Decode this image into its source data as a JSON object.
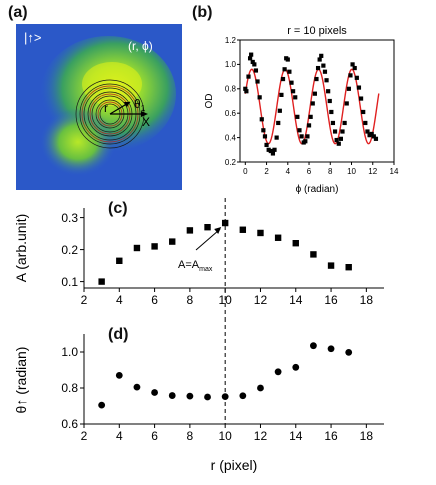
{
  "panels": {
    "a": {
      "letter": "(a)",
      "state_label": "|↑>",
      "coord_label": "(r, ϕ)",
      "r_label": "r",
      "theta_label": "θ",
      "theta_sub": "1",
      "x_label": "X"
    },
    "b": {
      "letter": "(b)"
    },
    "c": {
      "letter": "(c)",
      "annotation": "A=A",
      "annotation_sub": "max"
    },
    "d": {
      "letter": "(d)"
    }
  },
  "chart_data": [
    {
      "id": "b",
      "type": "scatter",
      "title": "r = 10 pixels",
      "xlabel": "ϕ (radian)",
      "ylabel": "OD",
      "xlim": [
        -0.5,
        14
      ],
      "ylim": [
        0.2,
        1.2
      ],
      "xticks": [
        0,
        2,
        4,
        6,
        8,
        10,
        12,
        14
      ],
      "yticks": [
        0.2,
        0.4,
        0.6,
        0.8,
        1.0,
        1.2
      ],
      "ytick_labels": [
        "0.2",
        "0.4",
        "0.6",
        "0.8",
        "1.0",
        "1.2"
      ],
      "points": [
        [
          0.0,
          0.8
        ],
        [
          0.1,
          0.78
        ],
        [
          0.3,
          0.9
        ],
        [
          0.45,
          1.05
        ],
        [
          0.55,
          1.08
        ],
        [
          0.7,
          1.02
        ],
        [
          0.85,
          1.0
        ],
        [
          1.0,
          0.95
        ],
        [
          1.15,
          0.86
        ],
        [
          1.35,
          0.73
        ],
        [
          1.55,
          0.55
        ],
        [
          1.7,
          0.46
        ],
        [
          1.85,
          0.41
        ],
        [
          2.0,
          0.34
        ],
        [
          2.2,
          0.3
        ],
        [
          2.4,
          0.29
        ],
        [
          2.6,
          0.27
        ],
        [
          2.75,
          0.3
        ],
        [
          2.95,
          0.4
        ],
        [
          3.1,
          0.52
        ],
        [
          3.25,
          0.62
        ],
        [
          3.4,
          0.75
        ],
        [
          3.55,
          0.88
        ],
        [
          3.7,
          0.96
        ],
        [
          3.85,
          1.05
        ],
        [
          4.0,
          1.04
        ],
        [
          4.15,
          0.94
        ],
        [
          4.35,
          0.85
        ],
        [
          4.5,
          0.78
        ],
        [
          4.7,
          0.73
        ],
        [
          4.9,
          0.57
        ],
        [
          5.1,
          0.46
        ],
        [
          5.3,
          0.41
        ],
        [
          5.5,
          0.36
        ],
        [
          5.65,
          0.37
        ],
        [
          5.85,
          0.41
        ],
        [
          6.0,
          0.5
        ],
        [
          6.15,
          0.57
        ],
        [
          6.35,
          0.68
        ],
        [
          6.55,
          0.76
        ],
        [
          6.7,
          0.88
        ],
        [
          6.85,
          0.97
        ],
        [
          7.0,
          1.04
        ],
        [
          7.15,
          1.07
        ],
        [
          7.35,
          0.99
        ],
        [
          7.5,
          0.94
        ],
        [
          7.65,
          0.87
        ],
        [
          7.8,
          0.78
        ],
        [
          7.95,
          0.7
        ],
        [
          8.1,
          0.61
        ],
        [
          8.25,
          0.52
        ],
        [
          8.45,
          0.45
        ],
        [
          8.6,
          0.38
        ],
        [
          8.8,
          0.35
        ],
        [
          9.0,
          0.39
        ],
        [
          9.15,
          0.45
        ],
        [
          9.35,
          0.52
        ],
        [
          9.55,
          0.68
        ],
        [
          9.75,
          0.8
        ],
        [
          9.9,
          0.91
        ],
        [
          10.1,
          1.0
        ],
        [
          10.3,
          0.97
        ],
        [
          10.5,
          0.89
        ],
        [
          10.7,
          0.81
        ],
        [
          10.9,
          0.72
        ],
        [
          11.1,
          0.61
        ],
        [
          11.3,
          0.52
        ],
        [
          11.5,
          0.45
        ],
        [
          11.7,
          0.42
        ],
        [
          11.9,
          0.43
        ],
        [
          12.1,
          0.41
        ],
        [
          12.3,
          0.39
        ]
      ],
      "fit": {
        "type": "line",
        "offset": 0.655,
        "amplitude": 0.305,
        "angular_frequency": 2.0,
        "phase": 0.35,
        "x_range": [
          0,
          12.57
        ],
        "color": "#e02020"
      }
    },
    {
      "id": "c",
      "type": "scatter",
      "xlabel": "",
      "ylabel": "A (arb.unit)",
      "xlim": [
        2,
        19
      ],
      "ylim": [
        0.08,
        0.33
      ],
      "xticks": [
        2,
        4,
        6,
        8,
        10,
        12,
        14,
        16,
        18
      ],
      "yticks": [
        0.1,
        0.2,
        0.3
      ],
      "ytick_labels": [
        "0.1",
        "0.2",
        "0.3"
      ],
      "points": [
        [
          3,
          0.1
        ],
        [
          4,
          0.165
        ],
        [
          5,
          0.205
        ],
        [
          6,
          0.21
        ],
        [
          7,
          0.225
        ],
        [
          8,
          0.26
        ],
        [
          9,
          0.27
        ],
        [
          10,
          0.283
        ],
        [
          11,
          0.262
        ],
        [
          12,
          0.252
        ],
        [
          13,
          0.237
        ],
        [
          14,
          0.22
        ],
        [
          15,
          0.185
        ],
        [
          16,
          0.15
        ],
        [
          17,
          0.145
        ]
      ],
      "marker": "square",
      "vline_x": 10
    },
    {
      "id": "d",
      "type": "scatter",
      "xlabel": "r (pixel)",
      "ylabel": "θ↑ (radian)",
      "xlim": [
        2,
        19
      ],
      "ylim": [
        0.6,
        1.1
      ],
      "xticks": [
        2,
        4,
        6,
        8,
        10,
        12,
        14,
        16,
        18
      ],
      "yticks": [
        0.6,
        0.8,
        1.0
      ],
      "ytick_labels": [
        "0.6",
        "0.8",
        "1.0"
      ],
      "points": [
        [
          3,
          0.705
        ],
        [
          4,
          0.87
        ],
        [
          5,
          0.805
        ],
        [
          6,
          0.775
        ],
        [
          7,
          0.758
        ],
        [
          8,
          0.755
        ],
        [
          9,
          0.75
        ],
        [
          10,
          0.752
        ],
        [
          11,
          0.757
        ],
        [
          12,
          0.8
        ],
        [
          13,
          0.89
        ],
        [
          14,
          0.915
        ],
        [
          15,
          1.035
        ],
        [
          16,
          1.018
        ],
        [
          17,
          0.998
        ]
      ],
      "marker": "circle",
      "vline_x": 10
    }
  ]
}
